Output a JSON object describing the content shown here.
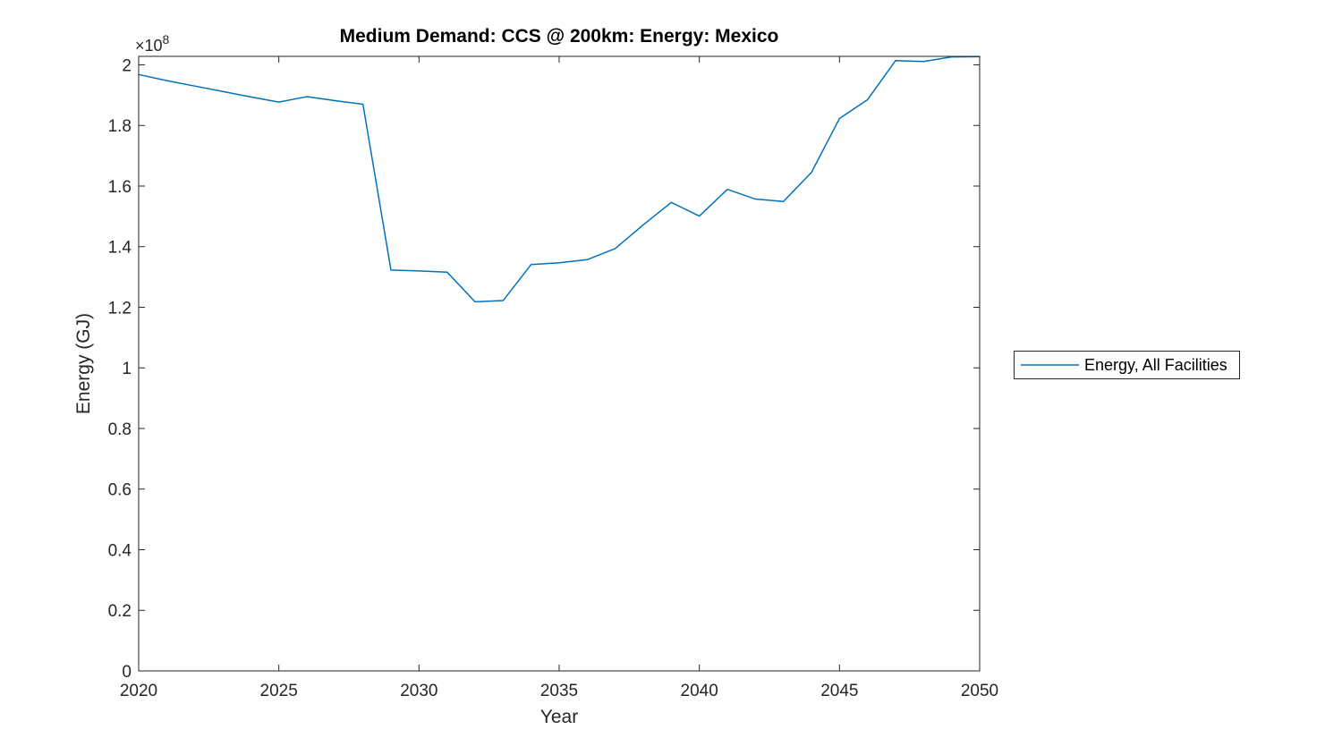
{
  "chart_data": {
    "type": "line",
    "title": "Medium Demand: CCS @ 200km: Energy: Mexico",
    "xlabel": "Year",
    "ylabel": "Energy (GJ)",
    "y_multiplier_base": "×10",
    "y_multiplier_exponent": "8",
    "y_unit_multiplier": "1e8",
    "x": [
      2020,
      2021,
      2022,
      2023,
      2024,
      2025,
      2026,
      2027,
      2028,
      2029,
      2030,
      2031,
      2032,
      2033,
      2034,
      2035,
      2036,
      2037,
      2038,
      2039,
      2040,
      2041,
      2042,
      2043,
      2044,
      2045,
      2046,
      2047,
      2048,
      2049,
      2050
    ],
    "series": [
      {
        "name": "Energy, All Facilities",
        "color": "#0072BD",
        "values": [
          1.968,
          1.948,
          1.93,
          1.912,
          1.894,
          1.877,
          1.895,
          1.882,
          1.87,
          1.323,
          1.32,
          1.316,
          1.218,
          1.222,
          1.341,
          1.347,
          1.357,
          1.394,
          1.472,
          1.546,
          1.501,
          1.589,
          1.557,
          1.549,
          1.645,
          1.823,
          1.885,
          2.014,
          2.011,
          2.026,
          2.027
        ]
      }
    ],
    "xlim": [
      2020,
      2050
    ],
    "ylim": [
      0,
      2.028
    ],
    "xticks": [
      2020,
      2025,
      2030,
      2035,
      2040,
      2045,
      2050
    ],
    "xtick_labels": [
      "2020",
      "2025",
      "2030",
      "2035",
      "2040",
      "2045",
      "2050"
    ],
    "yticks": [
      0,
      0.2,
      0.4,
      0.6,
      0.8,
      1,
      1.2,
      1.4,
      1.6,
      1.8,
      2
    ],
    "ytick_labels": [
      "0",
      "0.2",
      "0.4",
      "0.6",
      "0.8",
      "1",
      "1.2",
      "1.4",
      "1.6",
      "1.8",
      "2"
    ],
    "grid": false,
    "legend_position": "right-outside",
    "colors": {
      "line": "#0072BD",
      "axis": "#262626",
      "title": "#000000",
      "background": "#ffffff"
    }
  }
}
